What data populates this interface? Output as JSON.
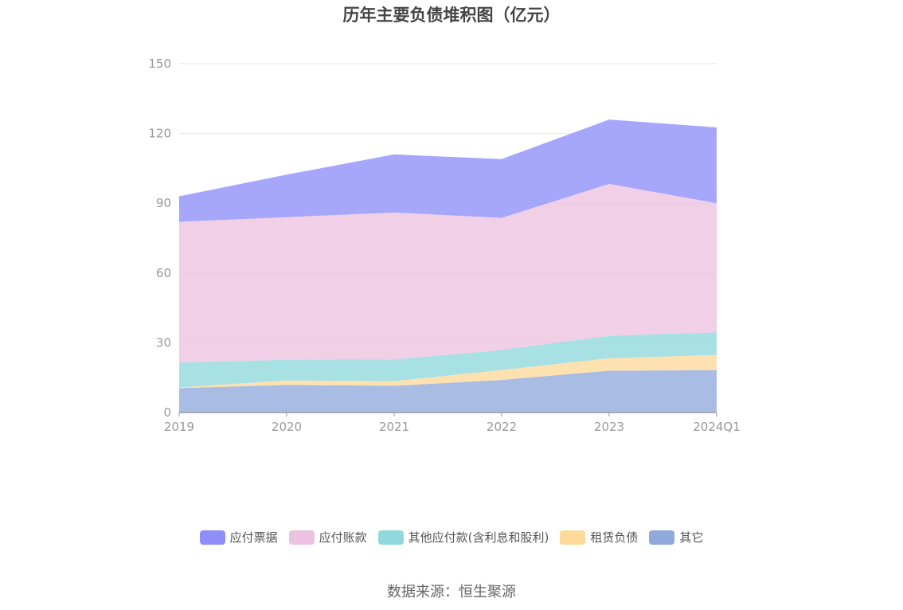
{
  "chart_data": {
    "type": "area",
    "title": "历年主要负债堆积图（亿元）",
    "categories": [
      "2019",
      "2020",
      "2021",
      "2022",
      "2023",
      "2024Q1"
    ],
    "stacked": true,
    "ylim": [
      0,
      150
    ],
    "yticks": [
      0,
      30,
      60,
      90,
      120,
      150
    ],
    "grid": true,
    "legend_position": "bottom",
    "series": [
      {
        "name": "其它",
        "color": "#8fa9dc",
        "values": [
          10.5,
          11.8,
          11.5,
          14,
          18,
          18.2
        ]
      },
      {
        "name": "租赁负债",
        "color": "#fdd99a",
        "values": [
          0.3,
          2.0,
          2.0,
          4.3,
          5.3,
          6.6
        ]
      },
      {
        "name": "其他应付款(含利息和股利)",
        "color": "#8fd9dd",
        "values": [
          10.7,
          8.9,
          9.3,
          8.6,
          9.7,
          9.7
        ]
      },
      {
        "name": "应付账款",
        "color": "#ecc2e0",
        "values": [
          60.5,
          61.3,
          63.2,
          56.8,
          65.3,
          55.5
        ]
      },
      {
        "name": "应付票据",
        "color": "#8d8ef8",
        "values": [
          11.0,
          18.3,
          25.0,
          25.3,
          27.7,
          32.6
        ]
      }
    ],
    "legend_order": [
      "应付票据",
      "应付账款",
      "其他应付款(含利息和股利)",
      "租赁负债",
      "其它"
    ]
  },
  "source_text": "数据来源：恒生聚源"
}
